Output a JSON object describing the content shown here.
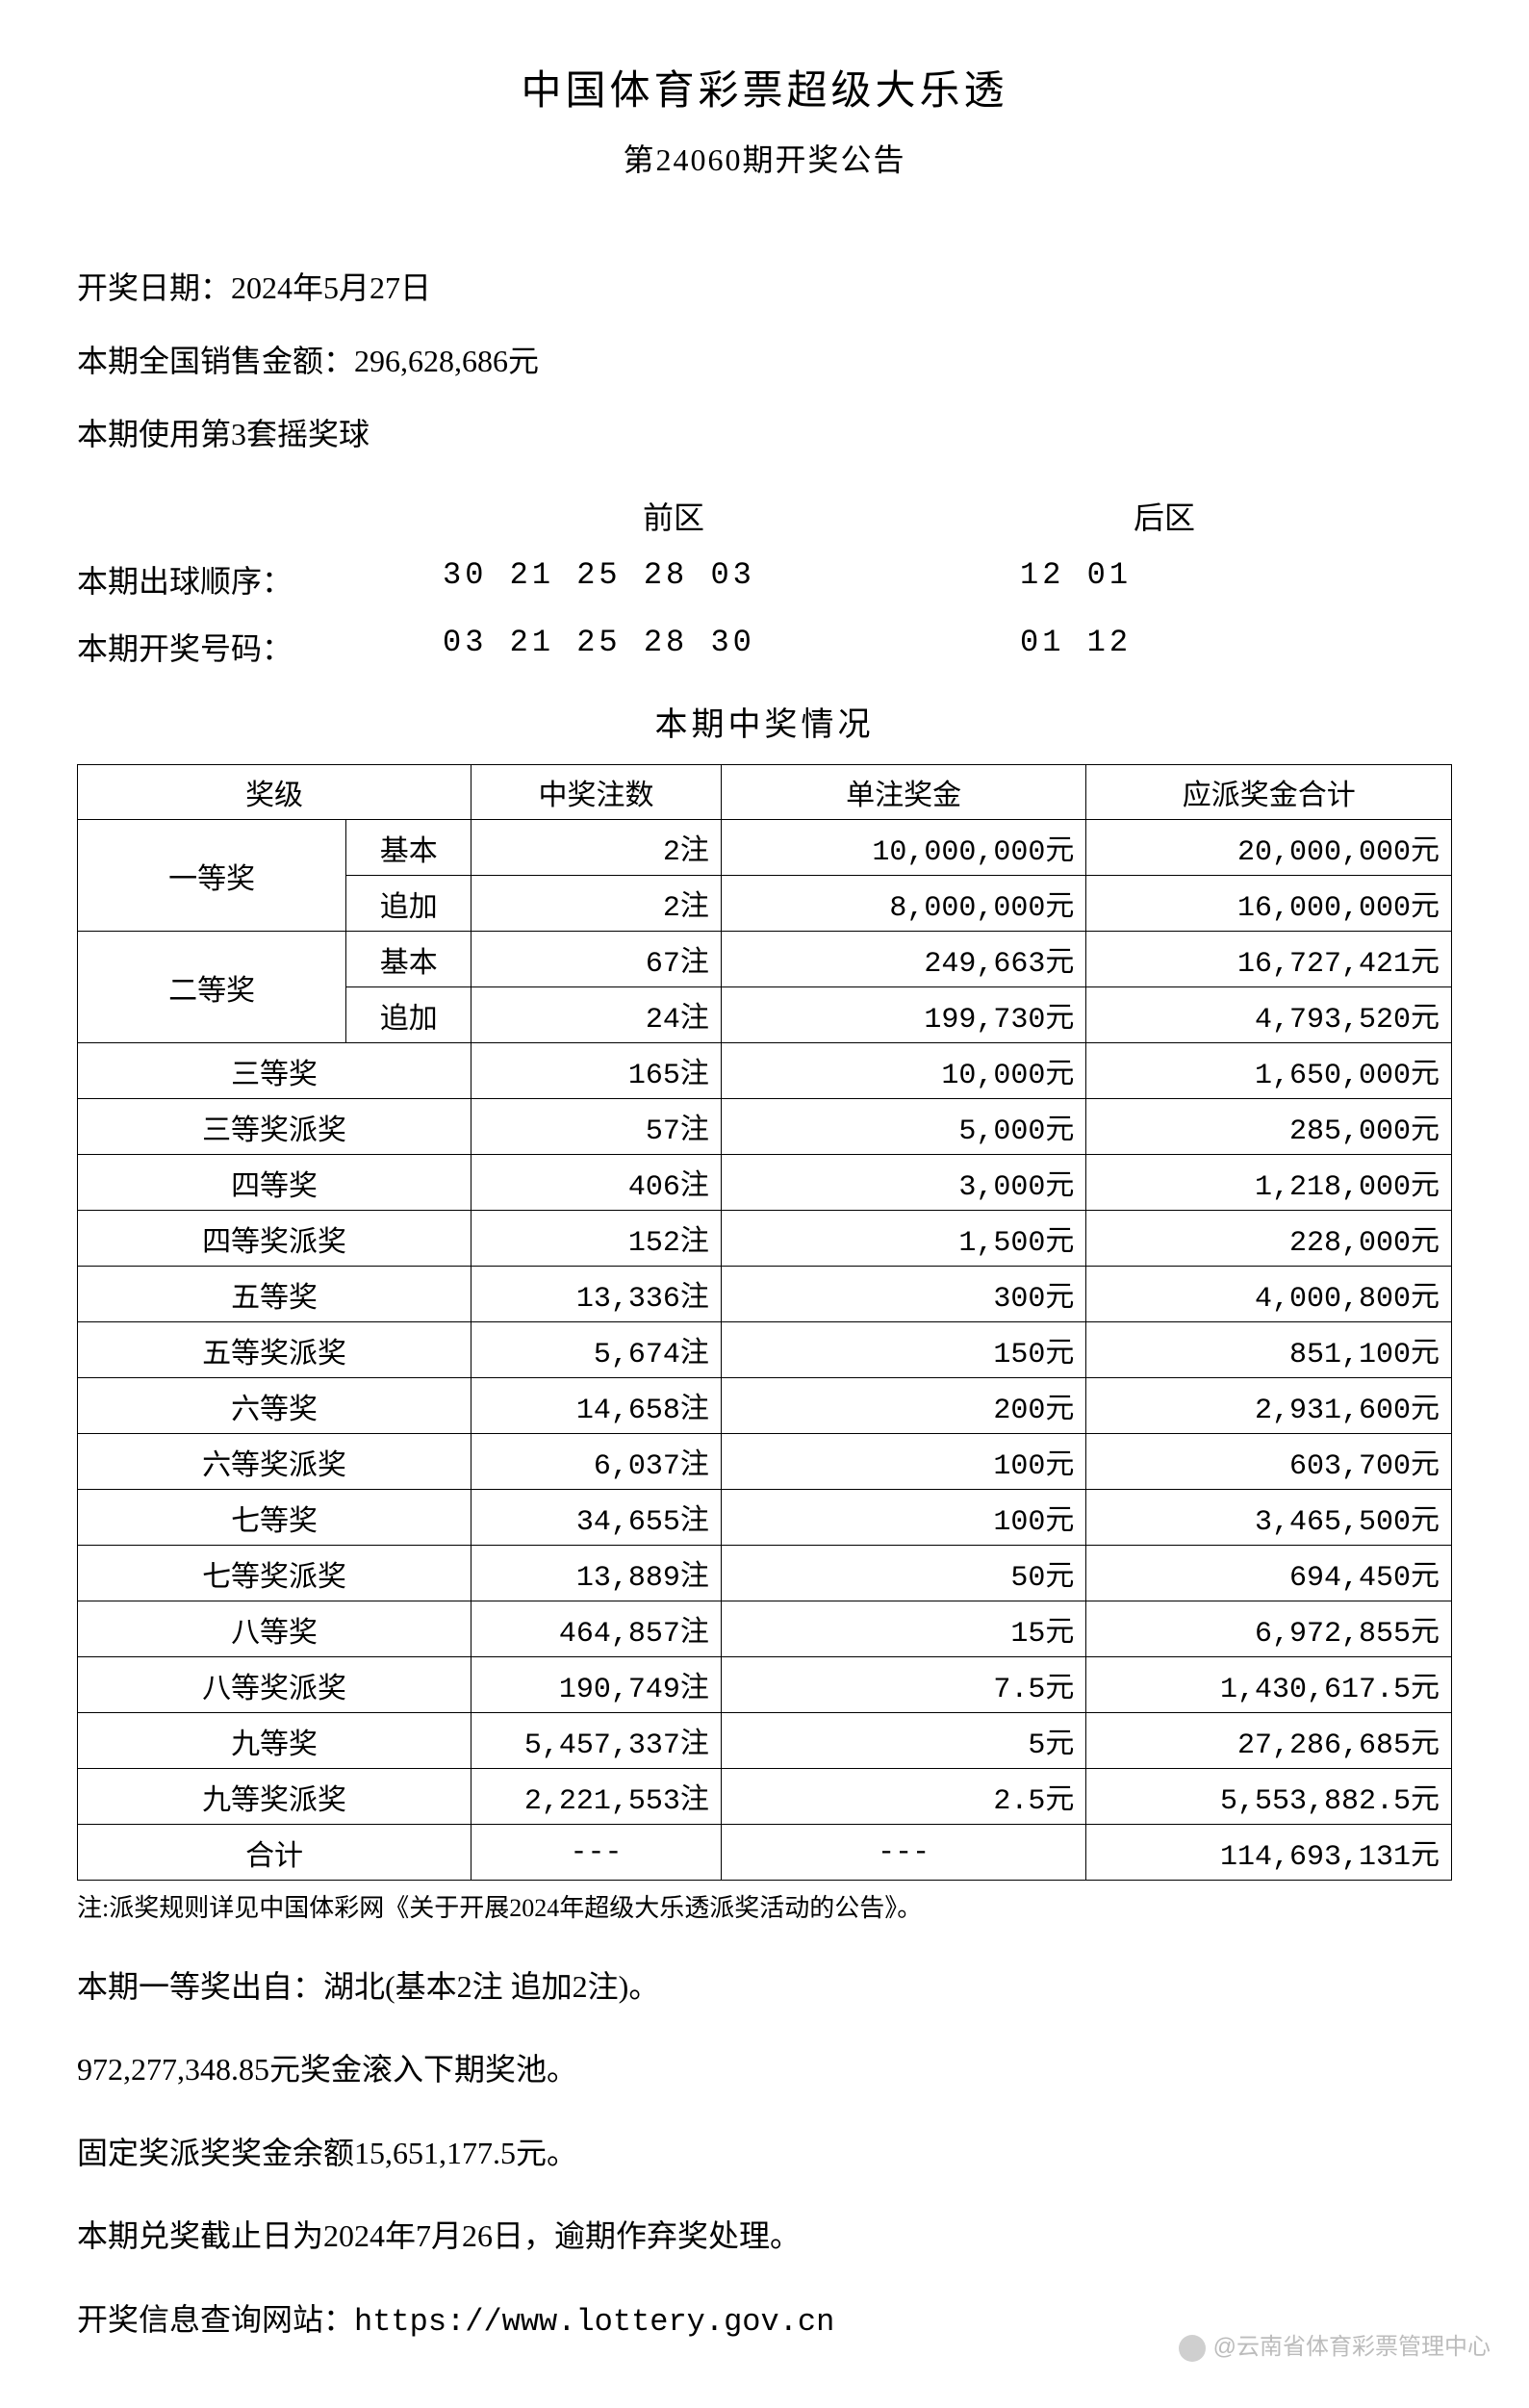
{
  "header": {
    "title": "中国体育彩票超级大乐透",
    "subtitle": "第24060期开奖公告"
  },
  "info": {
    "draw_date_label": "开奖日期：",
    "draw_date": "2024年5月27日",
    "sales_label": "本期全国销售金额：",
    "sales_amount": "296,628,686元",
    "ballset_line": "本期使用第3套摇奖球"
  },
  "numbers": {
    "front_header": "前区",
    "back_header": "后区",
    "draw_order_label": "本期出球顺序：",
    "draw_order_front": "30  21  25  28  03",
    "draw_order_back": "12  01",
    "winning_label": "本期开奖号码：",
    "winning_front": "03  21  25  28  30",
    "winning_back": "01  12"
  },
  "prize_section": {
    "title": "本期中奖情况",
    "columns": {
      "level": "奖级",
      "count": "中奖注数",
      "amount": "单注奖金",
      "total": "应派奖金合计"
    },
    "merged_rows": [
      {
        "level": "一等奖",
        "sub": "基本",
        "count": "2注",
        "amount": "10,000,000元",
        "total": "20,000,000元"
      },
      {
        "level": "一等奖",
        "sub": "追加",
        "count": "2注",
        "amount": "8,000,000元",
        "total": "16,000,000元"
      },
      {
        "level": "二等奖",
        "sub": "基本",
        "count": "67注",
        "amount": "249,663元",
        "total": "16,727,421元"
      },
      {
        "level": "二等奖",
        "sub": "追加",
        "count": "24注",
        "amount": "199,730元",
        "total": "4,793,520元"
      }
    ],
    "flat_rows": [
      {
        "level": "三等奖",
        "count": "165注",
        "amount": "10,000元",
        "total": "1,650,000元"
      },
      {
        "level": "三等奖派奖",
        "count": "57注",
        "amount": "5,000元",
        "total": "285,000元"
      },
      {
        "level": "四等奖",
        "count": "406注",
        "amount": "3,000元",
        "total": "1,218,000元"
      },
      {
        "level": "四等奖派奖",
        "count": "152注",
        "amount": "1,500元",
        "total": "228,000元"
      },
      {
        "level": "五等奖",
        "count": "13,336注",
        "amount": "300元",
        "total": "4,000,800元"
      },
      {
        "level": "五等奖派奖",
        "count": "5,674注",
        "amount": "150元",
        "total": "851,100元"
      },
      {
        "level": "六等奖",
        "count": "14,658注",
        "amount": "200元",
        "total": "2,931,600元"
      },
      {
        "level": "六等奖派奖",
        "count": "6,037注",
        "amount": "100元",
        "total": "603,700元"
      },
      {
        "level": "七等奖",
        "count": "34,655注",
        "amount": "100元",
        "total": "3,465,500元"
      },
      {
        "level": "七等奖派奖",
        "count": "13,889注",
        "amount": "50元",
        "total": "694,450元"
      },
      {
        "level": "八等奖",
        "count": "464,857注",
        "amount": "15元",
        "total": "6,972,855元"
      },
      {
        "level": "八等奖派奖",
        "count": "190,749注",
        "amount": "7.5元",
        "total": "1,430,617.5元"
      },
      {
        "level": "九等奖",
        "count": "5,457,337注",
        "amount": "5元",
        "total": "27,286,685元"
      },
      {
        "level": "九等奖派奖",
        "count": "2,221,553注",
        "amount": "2.5元",
        "total": "5,553,882.5元"
      }
    ],
    "total_row": {
      "level": "合计",
      "count": "---",
      "amount": "---",
      "total": "114,693,131元"
    }
  },
  "note": "注:派奖规则详见中国体彩网《关于开展2024年超级大乐透派奖活动的公告》。",
  "footer": {
    "line1": "本期一等奖出自：湖北(基本2注 追加2注)。",
    "line2": "972,277,348.85元奖金滚入下期奖池。",
    "line3": "固定奖派奖奖金余额15,651,177.5元。",
    "line4": "本期兑奖截止日为2024年7月26日，逾期作弃奖处理。",
    "line5_label": "开奖信息查询网站：",
    "line5_url": "https://www.lottery.gov.cn"
  },
  "watermark": "@云南省体育彩票管理中心",
  "styling": {
    "background_color": "#ffffff",
    "text_color": "#000000",
    "border_color": "#000000",
    "title_fontsize": 42,
    "body_fontsize": 32,
    "table_fontsize": 30,
    "note_fontsize": 26,
    "watermark_color": "rgba(160,160,160,0.7)"
  }
}
